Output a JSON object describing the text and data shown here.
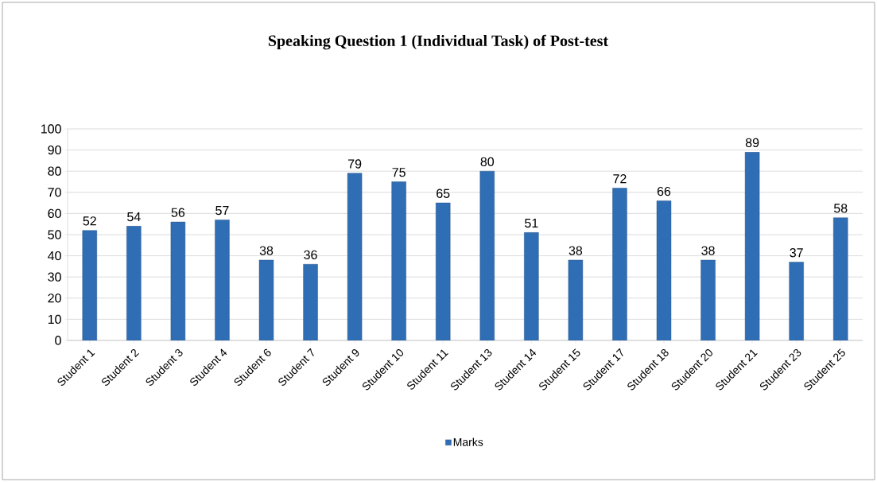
{
  "chart_data": {
    "type": "bar",
    "title": "Speaking Question 1 (Individual Task) of Post-test",
    "categories": [
      "Student 1",
      "Student 2",
      "Student 3",
      "Student 4",
      "Student 6",
      "Student 7",
      "Student 9",
      "Student 10",
      "Student 11",
      "Student 13",
      "Student 14",
      "Student 15",
      "Student 17",
      "Student 18",
      "Student 20",
      "Student 21",
      "Student 23",
      "Student 25"
    ],
    "series": [
      {
        "name": "Marks",
        "color": "#2f6eb5",
        "values": [
          52,
          54,
          56,
          57,
          38,
          36,
          79,
          75,
          65,
          80,
          51,
          38,
          72,
          66,
          38,
          89,
          37,
          58
        ]
      }
    ],
    "ylim": [
      0,
      100
    ],
    "yticks": [
      0,
      10,
      20,
      30,
      40,
      50,
      60,
      70,
      80,
      90,
      100
    ],
    "grid": "y",
    "legend": "bottom",
    "data_labels": true
  }
}
